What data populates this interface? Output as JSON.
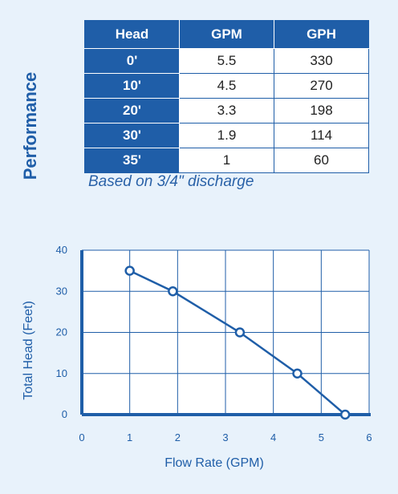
{
  "side_title": "Performance",
  "table": {
    "headers": [
      "Head",
      "GPM",
      "GPH"
    ],
    "rows": [
      [
        "0'",
        "5.5",
        "330"
      ],
      [
        "10'",
        "4.5",
        "270"
      ],
      [
        "20'",
        "3.3",
        "198"
      ],
      [
        "30'",
        "1.9",
        "114"
      ],
      [
        "35'",
        "1",
        "60"
      ]
    ]
  },
  "note": "Based on 3/4\" discharge",
  "colors": {
    "accent": "#1f5ea8",
    "background": "#e8f2fb",
    "text": "#222222"
  },
  "chart_data": {
    "type": "line",
    "xlabel": "Flow Rate (GPM)",
    "ylabel": "Total Head (Feet)",
    "xlim": [
      0,
      6
    ],
    "ylim": [
      0,
      40
    ],
    "xticks": [
      "0",
      "1",
      "2",
      "3",
      "4",
      "5",
      "6"
    ],
    "yticks": [
      "0",
      "10",
      "20",
      "30",
      "40"
    ],
    "grid": true,
    "series": [
      {
        "x": [
          1,
          1.9,
          3.3,
          4.5,
          5.5
        ],
        "y": [
          35,
          30,
          20,
          10,
          0
        ]
      }
    ]
  }
}
